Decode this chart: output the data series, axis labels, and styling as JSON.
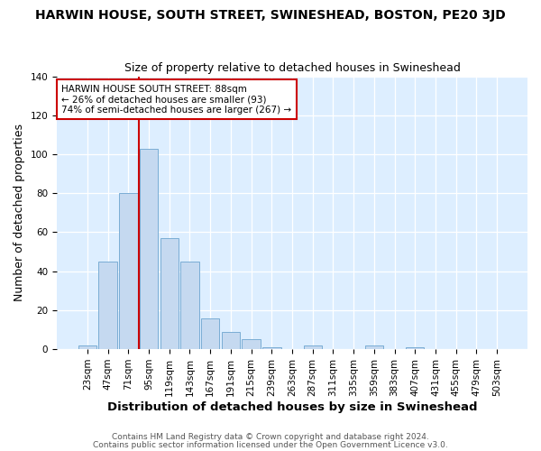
{
  "title": "HARWIN HOUSE, SOUTH STREET, SWINESHEAD, BOSTON, PE20 3JD",
  "subtitle": "Size of property relative to detached houses in Swineshead",
  "xlabel": "Distribution of detached houses by size in Swineshead",
  "ylabel": "Number of detached properties",
  "footer1": "Contains HM Land Registry data © Crown copyright and database right 2024.",
  "footer2": "Contains public sector information licensed under the Open Government Licence v3.0.",
  "annotation_line1": "HARWIN HOUSE SOUTH STREET: 88sqm",
  "annotation_line2": "← 26% of detached houses are smaller (93)",
  "annotation_line3": "74% of semi-detached houses are larger (267) →",
  "bar_values": [
    2,
    45,
    80,
    103,
    57,
    45,
    16,
    9,
    5,
    1,
    0,
    2,
    0,
    0,
    2,
    0,
    1,
    0,
    0,
    0,
    0
  ],
  "bar_labels": [
    "23sqm",
    "47sqm",
    "71sqm",
    "95sqm",
    "119sqm",
    "143sqm",
    "167sqm",
    "191sqm",
    "215sqm",
    "239sqm",
    "263sqm",
    "287sqm",
    "311sqm",
    "335sqm",
    "359sqm",
    "383sqm",
    "407sqm",
    "431sqm",
    "455sqm",
    "479sqm",
    "503sqm"
  ],
  "bar_color": "#c5d9f0",
  "bar_edge_color": "#7aadd4",
  "redline_x": 2.5,
  "ylim": [
    0,
    140
  ],
  "yticks": [
    0,
    20,
    40,
    60,
    80,
    100,
    120,
    140
  ],
  "fig_background": "#ffffff",
  "plot_background": "#ddeeff",
  "annotation_box_edge": "#cc0000",
  "redline_color": "#cc0000",
  "title_fontsize": 10,
  "subtitle_fontsize": 9,
  "ylabel_fontsize": 9,
  "xlabel_fontsize": 9.5,
  "tick_fontsize": 7.5,
  "footer_fontsize": 6.5
}
